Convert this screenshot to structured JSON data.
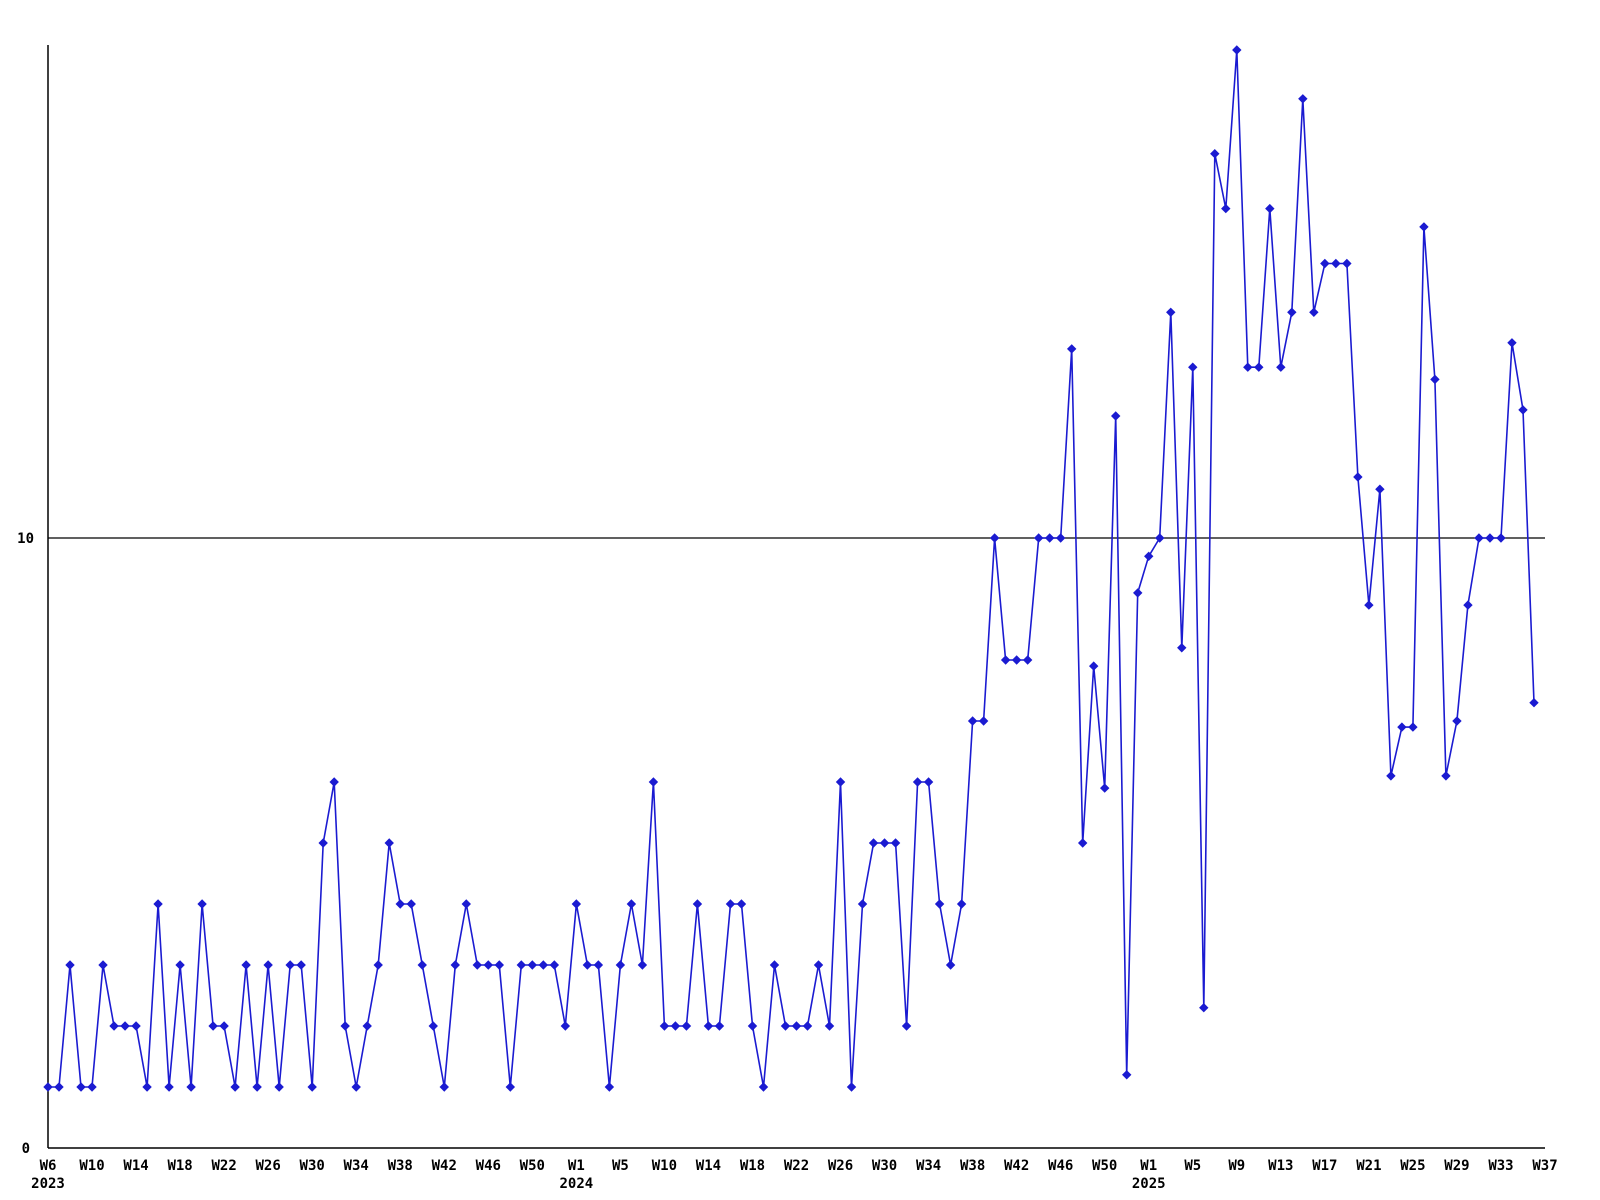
{
  "accent_color": "#1b1bd1",
  "axis_color": "#000000",
  "background_color": "#ffffff",
  "y_axis": {
    "labels": [
      "0",
      "10"
    ],
    "gridline_at": 10
  },
  "chart_data": {
    "type": "line",
    "title": "",
    "xlabel": "",
    "ylabel": "",
    "legend": "none",
    "grid": "single horizontal reference line at y=10",
    "marker": "point",
    "line_color": "#1b1bd1",
    "ylim": [
      0,
      18.2
    ],
    "x_start": "W6 2023",
    "x_end": "W37 2025",
    "x_tick_every": 4,
    "x_tick_labels": [
      "W6",
      "W10",
      "W14",
      "W18",
      "W22",
      "W26",
      "W30",
      "W34",
      "W38",
      "W42",
      "W46",
      "W50",
      "W1",
      "W5",
      "W10",
      "W14",
      "W18",
      "W22",
      "W26",
      "W30",
      "W34",
      "W38",
      "W42",
      "W46",
      "W50",
      "W1",
      "W5",
      "W9",
      "W13",
      "W17",
      "W21",
      "W25",
      "W29",
      "W33",
      "W37"
    ],
    "year_labels": [
      {
        "tick_index": 0,
        "label": "2023"
      },
      {
        "tick_index": 12,
        "label": "2024"
      },
      {
        "tick_index": 25,
        "label": "2025"
      }
    ],
    "values": [
      1,
      1,
      3,
      1,
      1,
      3,
      2,
      2,
      2,
      1,
      4,
      1,
      3,
      1,
      4,
      2,
      2,
      1,
      3,
      1,
      3,
      1,
      3,
      3,
      1,
      5,
      6,
      2,
      1,
      2,
      3,
      5,
      4,
      4,
      3,
      2,
      1,
      3,
      4,
      3,
      3,
      3,
      1,
      3,
      3,
      3,
      3,
      2,
      4,
      3,
      3,
      1,
      3,
      4,
      3,
      6,
      2,
      2,
      2,
      4,
      2,
      2,
      4,
      4,
      2,
      1,
      3,
      2,
      2,
      2,
      3,
      2,
      6,
      1,
      4,
      5,
      5,
      5,
      2,
      6,
      6,
      4,
      3,
      4,
      7,
      7,
      10,
      8,
      8,
      8,
      10,
      10,
      10,
      13.1,
      5,
      7.9,
      5.9,
      12,
      1.2,
      9.1,
      9.7,
      10,
      13.7,
      8.2,
      12.8,
      2.3,
      16.3,
      15.4,
      18,
      12.8,
      12.8,
      15.4,
      12.8,
      13.7,
      17.2,
      13.7,
      14.5,
      14.5,
      14.5,
      11,
      8.9,
      10.8,
      6.1,
      6.9,
      6.9,
      15.1,
      12.6,
      6.1,
      7,
      8.9,
      10,
      10,
      10,
      13.2,
      12.1,
      7.3
    ]
  },
  "layout_note": "weekly time series line chart, blue line with point markers, y reference line at 10"
}
